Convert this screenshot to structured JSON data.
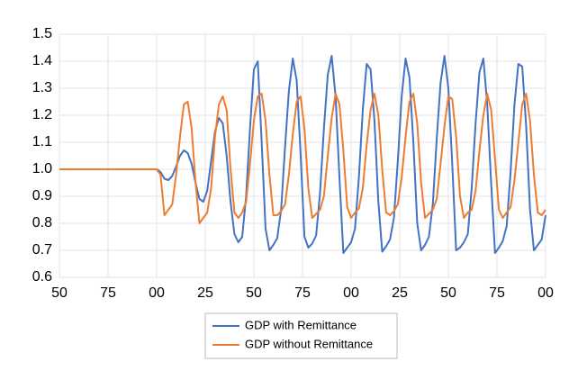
{
  "chart_data": {
    "type": "line",
    "x": [
      50,
      100,
      102,
      104,
      106,
      108,
      110,
      112,
      114,
      116,
      118,
      120,
      122,
      124,
      126,
      128,
      130,
      132,
      134,
      136,
      138,
      140,
      142,
      144,
      146,
      148,
      150,
      152,
      154,
      156,
      158,
      160,
      162,
      164,
      166,
      168,
      170,
      172,
      174,
      176,
      178,
      180,
      182,
      184,
      186,
      188,
      190,
      192,
      194,
      196,
      198,
      200,
      202,
      204,
      206,
      208,
      210,
      212,
      214,
      216,
      218,
      220,
      222,
      224,
      226,
      228,
      230,
      232,
      234,
      236,
      238,
      240,
      242,
      244,
      246,
      248,
      250,
      252,
      254,
      256,
      258,
      260,
      262,
      264,
      266,
      268,
      270,
      272,
      274,
      276,
      278,
      280,
      282,
      284,
      286,
      288,
      290,
      292,
      294,
      296,
      298,
      300
    ],
    "series": [
      {
        "name": "GDP with Remittance",
        "color": "#4472c4",
        "values": [
          1.0,
          1.0,
          0.99,
          0.965,
          0.96,
          0.975,
          1.01,
          1.05,
          1.07,
          1.06,
          1.02,
          0.95,
          0.89,
          0.88,
          0.92,
          1.03,
          1.14,
          1.19,
          1.17,
          1.05,
          0.88,
          0.76,
          0.73,
          0.75,
          0.9,
          1.15,
          1.37,
          1.4,
          1.1,
          0.78,
          0.7,
          0.72,
          0.745,
          0.85,
          1.08,
          1.29,
          1.41,
          1.33,
          1.06,
          0.75,
          0.71,
          0.725,
          0.755,
          0.91,
          1.15,
          1.35,
          1.42,
          1.27,
          0.97,
          0.69,
          0.71,
          0.73,
          0.78,
          0.97,
          1.22,
          1.39,
          1.37,
          1.18,
          0.88,
          0.695,
          0.715,
          0.74,
          0.82,
          1.03,
          1.27,
          1.41,
          1.34,
          1.1,
          0.8,
          0.7,
          0.72,
          0.75,
          0.87,
          1.11,
          1.32,
          1.42,
          1.3,
          1.02,
          0.7,
          0.71,
          0.73,
          0.76,
          0.93,
          1.17,
          1.36,
          1.41,
          1.24,
          0.95,
          0.69,
          0.71,
          0.735,
          0.79,
          0.99,
          1.24,
          1.39,
          1.38,
          1.16,
          0.85,
          0.7,
          0.72,
          0.74,
          0.83
        ]
      },
      {
        "name": "GDP without Remittance",
        "color": "#ed7d31",
        "values": [
          1.0,
          1.0,
          0.98,
          0.83,
          0.85,
          0.87,
          0.98,
          1.12,
          1.24,
          1.25,
          1.15,
          0.95,
          0.8,
          0.82,
          0.84,
          0.93,
          1.12,
          1.24,
          1.27,
          1.22,
          1.0,
          0.84,
          0.82,
          0.84,
          0.88,
          1.02,
          1.18,
          1.27,
          1.28,
          1.18,
          0.98,
          0.83,
          0.83,
          0.845,
          0.87,
          0.98,
          1.13,
          1.25,
          1.27,
          1.15,
          0.93,
          0.82,
          0.835,
          0.85,
          0.9,
          1.05,
          1.19,
          1.28,
          1.24,
          1.07,
          0.86,
          0.82,
          0.84,
          0.855,
          0.93,
          1.09,
          1.22,
          1.28,
          1.2,
          1.0,
          0.84,
          0.83,
          0.845,
          0.87,
          0.97,
          1.12,
          1.25,
          1.28,
          1.17,
          0.95,
          0.82,
          0.835,
          0.85,
          0.89,
          1.02,
          1.16,
          1.27,
          1.26,
          1.12,
          0.9,
          0.82,
          0.84,
          0.85,
          0.92,
          1.07,
          1.2,
          1.28,
          1.22,
          1.04,
          0.85,
          0.82,
          0.84,
          0.86,
          0.96,
          1.1,
          1.24,
          1.28,
          1.18,
          0.98,
          0.84,
          0.83,
          0.85
        ]
      }
    ],
    "xlim": [
      50,
      300
    ],
    "xticks": [
      50,
      75,
      {
        "value": 100,
        "label": "00"
      },
      {
        "value": 125,
        "label": "25"
      },
      {
        "value": 150,
        "label": "50"
      },
      {
        "value": 175,
        "label": "75"
      },
      {
        "value": 200,
        "label": "00"
      },
      {
        "value": 225,
        "label": "25"
      },
      {
        "value": 250,
        "label": "50"
      },
      {
        "value": 275,
        "label": "75"
      },
      {
        "value": 300,
        "label": "00"
      }
    ],
    "ylim": [
      0.6,
      1.5
    ],
    "yticks": [
      0.6,
      0.7,
      0.8,
      0.9,
      {
        "value": 1.0,
        "label": "1.0"
      },
      1.1,
      1.2,
      1.3,
      1.4,
      1.5
    ],
    "grid": true,
    "legend": "bottom"
  }
}
